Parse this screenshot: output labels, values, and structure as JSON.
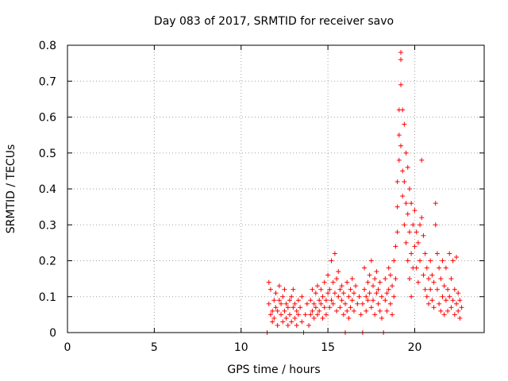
{
  "chart_data": {
    "type": "scatter",
    "title": "Day 083 of 2017, SRMTID for receiver savo",
    "xlabel": "GPS time / hours",
    "ylabel": "SRMTID / TECUs",
    "xlim": [
      0,
      24
    ],
    "ylim": [
      0,
      0.8
    ],
    "xticks": [
      0,
      5,
      10,
      15,
      20
    ],
    "xtick_labels": [
      "0",
      "5",
      "10",
      "15",
      "20"
    ],
    "yticks": [
      0,
      0.1,
      0.2,
      0.3,
      0.4,
      0.5,
      0.6,
      0.7,
      0.8
    ],
    "ytick_labels": [
      "0",
      "0.1",
      "0.2",
      "0.3",
      "0.4",
      "0.5",
      "0.6",
      "0.7",
      "0.8"
    ],
    "grid": true,
    "marker": "plus",
    "color": "#ff0000",
    "series": [
      {
        "name": "SRMTID",
        "points": [
          [
            11.5,
            0.0
          ],
          [
            11.6,
            0.14
          ],
          [
            11.6,
            0.08
          ],
          [
            11.7,
            0.05
          ],
          [
            11.7,
            0.12
          ],
          [
            11.8,
            0.06
          ],
          [
            11.8,
            0.03
          ],
          [
            11.9,
            0.09
          ],
          [
            11.9,
            0.04
          ],
          [
            12.0,
            0.07
          ],
          [
            12.0,
            0.11
          ],
          [
            12.1,
            0.02
          ],
          [
            12.1,
            0.06
          ],
          [
            12.2,
            0.09
          ],
          [
            12.2,
            0.13
          ],
          [
            12.3,
            0.05
          ],
          [
            12.3,
            0.08
          ],
          [
            12.4,
            0.03
          ],
          [
            12.4,
            0.1
          ],
          [
            12.5,
            0.06
          ],
          [
            12.5,
            0.12
          ],
          [
            12.6,
            0.04
          ],
          [
            12.6,
            0.08
          ],
          [
            12.7,
            0.07
          ],
          [
            12.7,
            0.02
          ],
          [
            12.8,
            0.09
          ],
          [
            12.8,
            0.05
          ],
          [
            12.9,
            0.1
          ],
          [
            12.9,
            0.03
          ],
          [
            13.0,
            0.07
          ],
          [
            13.0,
            0.12
          ],
          [
            13.1,
            0.04
          ],
          [
            13.1,
            0.08
          ],
          [
            13.2,
            0.06
          ],
          [
            13.2,
            0.02
          ],
          [
            13.3,
            0.09
          ],
          [
            13.3,
            0.05
          ],
          [
            13.4,
            0.07
          ],
          [
            13.5,
            0.03
          ],
          [
            13.5,
            0.1
          ],
          [
            13.6,
            0.0
          ],
          [
            13.7,
            0.05
          ],
          [
            13.8,
            0.08
          ],
          [
            13.9,
            0.02
          ],
          [
            14.0,
            0.05
          ],
          [
            14.0,
            0.09
          ],
          [
            14.1,
            0.12
          ],
          [
            14.1,
            0.06
          ],
          [
            14.2,
            0.08
          ],
          [
            14.2,
            0.04
          ],
          [
            14.3,
            0.11
          ],
          [
            14.3,
            0.07
          ],
          [
            14.4,
            0.13
          ],
          [
            14.4,
            0.05
          ],
          [
            14.5,
            0.09
          ],
          [
            14.5,
            0.06
          ],
          [
            14.6,
            0.12
          ],
          [
            14.6,
            0.08
          ],
          [
            14.7,
            0.04
          ],
          [
            14.7,
            0.1
          ],
          [
            14.8,
            0.07
          ],
          [
            14.8,
            0.14
          ],
          [
            14.9,
            0.09
          ],
          [
            14.9,
            0.05
          ],
          [
            15.0,
            0.11
          ],
          [
            15.0,
            0.16
          ],
          [
            15.1,
            0.07
          ],
          [
            15.1,
            0.12
          ],
          [
            15.2,
            0.09
          ],
          [
            15.2,
            0.2
          ],
          [
            15.3,
            0.14
          ],
          [
            15.3,
            0.08
          ],
          [
            15.4,
            0.22
          ],
          [
            15.4,
            0.11
          ],
          [
            15.5,
            0.06
          ],
          [
            15.5,
            0.15
          ],
          [
            15.6,
            0.1
          ],
          [
            15.6,
            0.17
          ],
          [
            15.7,
            0.12
          ],
          [
            15.7,
            0.07
          ],
          [
            15.8,
            0.13
          ],
          [
            15.8,
            0.09
          ],
          [
            15.9,
            0.05
          ],
          [
            15.9,
            0.11
          ],
          [
            16.0,
            0.0
          ],
          [
            16.0,
            0.08
          ],
          [
            16.1,
            0.14
          ],
          [
            16.1,
            0.06
          ],
          [
            16.2,
            0.1
          ],
          [
            16.2,
            0.04
          ],
          [
            16.3,
            0.12
          ],
          [
            16.3,
            0.07
          ],
          [
            16.4,
            0.09
          ],
          [
            16.4,
            0.15
          ],
          [
            16.5,
            0.11
          ],
          [
            16.5,
            0.06
          ],
          [
            16.6,
            0.13
          ],
          [
            16.7,
            0.08
          ],
          [
            16.8,
            0.1
          ],
          [
            16.9,
            0.05
          ],
          [
            17.0,
            0.0
          ],
          [
            17.0,
            0.08
          ],
          [
            17.1,
            0.12
          ],
          [
            17.1,
            0.18
          ],
          [
            17.2,
            0.1
          ],
          [
            17.2,
            0.06
          ],
          [
            17.3,
            0.14
          ],
          [
            17.3,
            0.09
          ],
          [
            17.4,
            0.16
          ],
          [
            17.4,
            0.11
          ],
          [
            17.5,
            0.2
          ],
          [
            17.5,
            0.07
          ],
          [
            17.6,
            0.13
          ],
          [
            17.6,
            0.09
          ],
          [
            17.7,
            0.15
          ],
          [
            17.7,
            0.05
          ],
          [
            17.8,
            0.11
          ],
          [
            17.8,
            0.17
          ],
          [
            17.9,
            0.08
          ],
          [
            17.9,
            0.12
          ],
          [
            18.0,
            0.06
          ],
          [
            18.0,
            0.14
          ],
          [
            18.1,
            0.1
          ],
          [
            18.1,
            0.04
          ],
          [
            18.2,
            0.0
          ],
          [
            18.3,
            0.09
          ],
          [
            18.3,
            0.15
          ],
          [
            18.4,
            0.11
          ],
          [
            18.4,
            0.06
          ],
          [
            18.5,
            0.18
          ],
          [
            18.5,
            0.12
          ],
          [
            18.6,
            0.08
          ],
          [
            18.6,
            0.16
          ],
          [
            18.7,
            0.05
          ],
          [
            18.7,
            0.13
          ],
          [
            18.8,
            0.2
          ],
          [
            18.8,
            0.1
          ],
          [
            18.9,
            0.24
          ],
          [
            18.9,
            0.15
          ],
          [
            19.0,
            0.35
          ],
          [
            19.0,
            0.28
          ],
          [
            19.0,
            0.42
          ],
          [
            19.1,
            0.55
          ],
          [
            19.1,
            0.48
          ],
          [
            19.1,
            0.62
          ],
          [
            19.2,
            0.78
          ],
          [
            19.2,
            0.76
          ],
          [
            19.2,
            0.69
          ],
          [
            19.2,
            0.52
          ],
          [
            19.3,
            0.62
          ],
          [
            19.3,
            0.45
          ],
          [
            19.3,
            0.38
          ],
          [
            19.4,
            0.58
          ],
          [
            19.4,
            0.42
          ],
          [
            19.4,
            0.3
          ],
          [
            19.5,
            0.5
          ],
          [
            19.5,
            0.36
          ],
          [
            19.5,
            0.25
          ],
          [
            19.6,
            0.46
          ],
          [
            19.6,
            0.33
          ],
          [
            19.6,
            0.2
          ],
          [
            19.7,
            0.4
          ],
          [
            19.7,
            0.28
          ],
          [
            19.7,
            0.15
          ],
          [
            19.8,
            0.36
          ],
          [
            19.8,
            0.22
          ],
          [
            19.8,
            0.1
          ],
          [
            19.9,
            0.3
          ],
          [
            19.9,
            0.18
          ],
          [
            20.0,
            0.34
          ],
          [
            20.0,
            0.24
          ],
          [
            20.1,
            0.28
          ],
          [
            20.1,
            0.18
          ],
          [
            20.2,
            0.25
          ],
          [
            20.2,
            0.14
          ],
          [
            20.3,
            0.3
          ],
          [
            20.3,
            0.2
          ],
          [
            20.4,
            0.48
          ],
          [
            20.4,
            0.32
          ],
          [
            20.5,
            0.27
          ],
          [
            20.5,
            0.16
          ],
          [
            20.6,
            0.22
          ],
          [
            20.6,
            0.12
          ],
          [
            20.7,
            0.18
          ],
          [
            20.7,
            0.1
          ],
          [
            20.8,
            0.15
          ],
          [
            20.8,
            0.08
          ],
          [
            20.9,
            0.2
          ],
          [
            20.9,
            0.12
          ],
          [
            21.0,
            0.16
          ],
          [
            21.0,
            0.09
          ],
          [
            21.1,
            0.14
          ],
          [
            21.1,
            0.07
          ],
          [
            21.2,
            0.36
          ],
          [
            21.2,
            0.3
          ],
          [
            21.3,
            0.22
          ],
          [
            21.3,
            0.12
          ],
          [
            21.4,
            0.18
          ],
          [
            21.4,
            0.08
          ],
          [
            21.5,
            0.15
          ],
          [
            21.5,
            0.06
          ],
          [
            21.6,
            0.2
          ],
          [
            21.6,
            0.1
          ],
          [
            21.7,
            0.13
          ],
          [
            21.7,
            0.05
          ],
          [
            21.8,
            0.18
          ],
          [
            21.8,
            0.09
          ],
          [
            21.9,
            0.12
          ],
          [
            21.9,
            0.06
          ],
          [
            22.0,
            0.22
          ],
          [
            22.0,
            0.1
          ],
          [
            22.1,
            0.15
          ],
          [
            22.1,
            0.07
          ],
          [
            22.2,
            0.2
          ],
          [
            22.2,
            0.09
          ],
          [
            22.3,
            0.12
          ],
          [
            22.3,
            0.05
          ],
          [
            22.4,
            0.21
          ],
          [
            22.4,
            0.08
          ],
          [
            22.5,
            0.11
          ],
          [
            22.5,
            0.06
          ],
          [
            22.6,
            0.09
          ],
          [
            22.6,
            0.04
          ],
          [
            22.7,
            0.07
          ]
        ]
      }
    ]
  }
}
